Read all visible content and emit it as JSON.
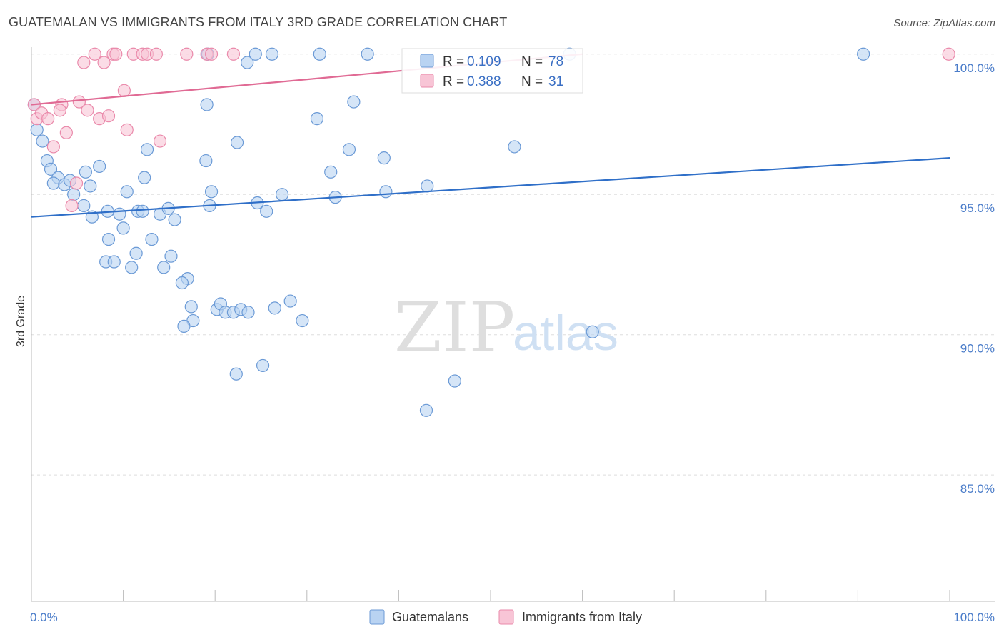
{
  "title": "GUATEMALAN VS IMMIGRANTS FROM ITALY 3RD GRADE CORRELATION CHART",
  "source": "Source: ZipAtlas.com",
  "watermark": {
    "zip": "ZIP",
    "atlas": "atlas"
  },
  "colors": {
    "blue_fill": "#b9d3f2",
    "blue_stroke": "#6b9ad6",
    "blue_line": "#2f6fc8",
    "pink_fill": "#f8c5d6",
    "pink_stroke": "#ea8aab",
    "pink_line": "#e06a94",
    "grid": "#dddddd",
    "axis": "#bbbbbb"
  },
  "chart_data": {
    "type": "scatter",
    "title": "GUATEMALAN VS IMMIGRANTS FROM ITALY 3RD GRADE CORRELATION CHART",
    "xlabel": "",
    "ylabel": "3rd Grade",
    "xlim": [
      0,
      100
    ],
    "ylim": [
      80.5,
      100.35
    ],
    "x_tick_labels": [
      "0.0%",
      "100.0%"
    ],
    "y_ticks": [
      {
        "value": 100,
        "label": "100.0%"
      },
      {
        "value": 95,
        "label": "95.0%"
      },
      {
        "value": 90,
        "label": "90.0%"
      },
      {
        "value": 85,
        "label": "85.0%"
      }
    ],
    "legend": {
      "stats": [
        {
          "r_label": "R =",
          "r_value": "0.109",
          "n_label": "N =",
          "n_value": "78"
        },
        {
          "r_label": "R =",
          "r_value": "0.388",
          "n_label": "N =",
          "n_value": "31"
        }
      ],
      "bottom": [
        "Guatemalans",
        "Immigrants from Italy"
      ]
    },
    "series": [
      {
        "name": "Guatemalans",
        "trend": {
          "x": [
            0,
            100
          ],
          "y": [
            94.2,
            96.3
          ]
        },
        "points": [
          [
            0.3,
            98.2
          ],
          [
            0.6,
            97.3
          ],
          [
            1.2,
            96.9
          ],
          [
            1.7,
            96.2
          ],
          [
            2.1,
            95.9
          ],
          [
            2.9,
            95.6
          ],
          [
            2.4,
            95.4
          ],
          [
            3.6,
            95.35
          ],
          [
            4.2,
            95.5
          ],
          [
            4.6,
            95.0
          ],
          [
            5.9,
            95.8
          ],
          [
            6.4,
            95.3
          ],
          [
            7.4,
            96.0
          ],
          [
            5.7,
            94.6
          ],
          [
            6.6,
            94.2
          ],
          [
            8.3,
            94.4
          ],
          [
            9.6,
            94.3
          ],
          [
            10.0,
            93.8
          ],
          [
            8.4,
            93.4
          ],
          [
            8.1,
            92.6
          ],
          [
            9.0,
            92.6
          ],
          [
            10.9,
            92.4
          ],
          [
            11.4,
            92.9
          ],
          [
            10.4,
            95.1
          ],
          [
            11.6,
            94.4
          ],
          [
            12.6,
            96.6
          ],
          [
            12.3,
            95.6
          ],
          [
            12.1,
            94.4
          ],
          [
            13.1,
            93.4
          ],
          [
            14.0,
            94.3
          ],
          [
            14.9,
            94.5
          ],
          [
            15.6,
            94.1
          ],
          [
            14.4,
            92.4
          ],
          [
            15.2,
            92.8
          ],
          [
            17.0,
            92.0
          ],
          [
            16.4,
            91.85
          ],
          [
            17.4,
            91.0
          ],
          [
            17.6,
            90.5
          ],
          [
            16.6,
            90.3
          ],
          [
            19.0,
            96.2
          ],
          [
            19.1,
            98.2
          ],
          [
            19.2,
            100.0
          ],
          [
            19.6,
            95.1
          ],
          [
            19.4,
            94.6
          ],
          [
            20.2,
            90.9
          ],
          [
            20.6,
            91.1
          ],
          [
            21.1,
            90.8
          ],
          [
            22.0,
            90.8
          ],
          [
            22.8,
            90.9
          ],
          [
            23.6,
            90.8
          ],
          [
            22.4,
            96.85
          ],
          [
            22.3,
            88.6
          ],
          [
            23.5,
            99.7
          ],
          [
            24.4,
            100.0
          ],
          [
            24.6,
            94.7
          ],
          [
            25.2,
            88.9
          ],
          [
            25.6,
            94.4
          ],
          [
            26.2,
            100.0
          ],
          [
            27.3,
            95.0
          ],
          [
            26.5,
            90.95
          ],
          [
            28.2,
            91.2
          ],
          [
            29.5,
            90.5
          ],
          [
            31.1,
            97.7
          ],
          [
            31.4,
            100.0
          ],
          [
            32.6,
            95.8
          ],
          [
            33.1,
            94.9
          ],
          [
            34.6,
            96.6
          ],
          [
            35.1,
            98.3
          ],
          [
            36.6,
            100.0
          ],
          [
            38.4,
            96.3
          ],
          [
            38.6,
            95.1
          ],
          [
            43.1,
            95.3
          ],
          [
            43.0,
            87.3
          ],
          [
            46.1,
            88.35
          ],
          [
            52.6,
            96.7
          ],
          [
            58.6,
            100.0
          ],
          [
            61.1,
            90.1
          ],
          [
            90.6,
            100.0
          ]
        ]
      },
      {
        "name": "Immigrants from Italy",
        "trend": {
          "x": [
            0,
            60
          ],
          "y": [
            98.2,
            100.0
          ]
        },
        "points": [
          [
            0.3,
            98.2
          ],
          [
            0.6,
            97.7
          ],
          [
            1.1,
            97.9
          ],
          [
            1.8,
            97.7
          ],
          [
            2.4,
            96.7
          ],
          [
            3.3,
            98.2
          ],
          [
            3.1,
            98.0
          ],
          [
            3.8,
            97.2
          ],
          [
            4.4,
            94.6
          ],
          [
            4.9,
            95.4
          ],
          [
            5.2,
            98.3
          ],
          [
            5.7,
            99.7
          ],
          [
            6.1,
            98.0
          ],
          [
            6.9,
            100.0
          ],
          [
            7.4,
            97.7
          ],
          [
            7.9,
            99.7
          ],
          [
            8.4,
            97.8
          ],
          [
            8.9,
            100.0
          ],
          [
            9.2,
            100.0
          ],
          [
            10.1,
            98.7
          ],
          [
            10.4,
            97.3
          ],
          [
            11.1,
            100.0
          ],
          [
            12.1,
            100.0
          ],
          [
            12.6,
            100.0
          ],
          [
            13.6,
            100.0
          ],
          [
            14.0,
            96.9
          ],
          [
            16.9,
            100.0
          ],
          [
            19.1,
            100.0
          ],
          [
            19.6,
            100.0
          ],
          [
            22.0,
            100.0
          ],
          [
            99.9,
            100.0
          ]
        ]
      }
    ]
  }
}
